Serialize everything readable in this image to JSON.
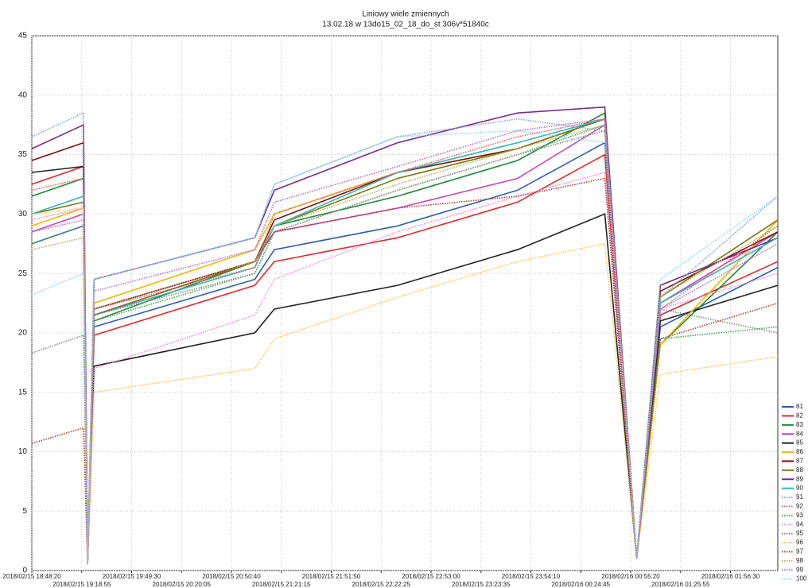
{
  "chart_data": {
    "type": "line",
    "title": "Liniowy   wiele zmiennych",
    "subtitle": "13.02.18 w 13do15_02_18_do_st 306v*51840c",
    "x": [
      "2018/02/15 18:48:20",
      "2018/02/15 19:20:00",
      "2018/02/15 19:22:30",
      "2018/02/15 19:26:30",
      "2018/02/15 21:05:00",
      "2018/02/15 21:17:00",
      "2018/02/15 22:32:30",
      "2018/02/15 23:46:00",
      "2018/02/16 00:39:30",
      "2018/02/16 00:59:00",
      "2018/02/16 01:13:30",
      "2018/02/16 02:25:30"
    ],
    "xlim": [
      "2018/02/15 18:48:20",
      "2018/02/16 02:25:30"
    ],
    "xticks": [
      "2018/02/15 18:48:20",
      "2018/02/15 19:18:55",
      "2018/02/15 19:49:30",
      "2018/02/15 20:20:05",
      "2018/02/15 20:50:40",
      "2018/02/15 21:21:15",
      "2018/02/15 21:51:50",
      "2018/02/15 22:22:25",
      "2018/02/15 22:53:00",
      "2018/02/15 23:23:35",
      "2018/02/15 23:54:10",
      "2018/02/16 00:24:45",
      "2018/02/16 00:55:20",
      "2018/02/16 01:25:55",
      "2018/02/16 01:56:30"
    ],
    "ylim": [
      0,
      45
    ],
    "yticks": [
      0,
      5,
      10,
      15,
      20,
      25,
      30,
      35,
      40,
      45
    ],
    "grid": true,
    "legend": "right",
    "series": [
      {
        "name": "81",
        "color": "#2c5fb0",
        "style": "solid",
        "values": [
          27.5,
          29,
          0.5,
          20.5,
          24.5,
          27,
          29,
          32,
          36,
          1,
          20.5,
          25.5
        ]
      },
      {
        "name": "82",
        "color": "#e8262a",
        "style": "solid",
        "values": [
          32.5,
          34,
          0.5,
          19.8,
          24,
          26,
          28,
          31,
          35,
          1,
          21.5,
          26
        ]
      },
      {
        "name": "83",
        "color": "#1f8a3a",
        "style": "solid",
        "values": [
          31.5,
          33,
          0.5,
          21,
          26,
          29,
          31.5,
          34.5,
          38.5,
          1,
          19,
          28.5
        ]
      },
      {
        "name": "84",
        "color": "#c946b8",
        "style": "solid",
        "values": [
          28.5,
          30,
          0.5,
          22,
          26,
          28.5,
          30.5,
          33,
          37.5,
          1,
          22.5,
          28.5
        ]
      },
      {
        "name": "85",
        "color": "#222222",
        "style": "solid",
        "values": [
          33.5,
          34,
          0.5,
          17.2,
          20,
          22,
          24,
          27,
          30,
          1,
          21,
          24
        ]
      },
      {
        "name": "86",
        "color": "#f5b800",
        "style": "solid",
        "values": [
          29,
          30.5,
          0.5,
          22.5,
          27,
          30,
          33.5,
          35.5,
          38,
          1,
          19,
          29.5
        ]
      },
      {
        "name": "87",
        "color": "#7a1410",
        "style": "solid",
        "values": [
          34.5,
          36,
          0.5,
          22,
          26,
          29.5,
          33.5,
          35.5,
          38,
          1,
          23.5,
          28.5
        ]
      },
      {
        "name": "88",
        "color": "#7b7a12",
        "style": "solid",
        "values": [
          30,
          31,
          0.5,
          21.5,
          26,
          29,
          33,
          35.5,
          38,
          1,
          23,
          29.5
        ]
      },
      {
        "name": "89",
        "color": "#7a2a8a",
        "style": "solid",
        "values": [
          35.5,
          37.5,
          0.5,
          24.5,
          28,
          32,
          36,
          38.5,
          39,
          1,
          24,
          28
        ]
      },
      {
        "name": "90",
        "color": "#2fb7c0",
        "style": "solid",
        "values": [
          30,
          31.5,
          0.5,
          21.5,
          25.5,
          29,
          33.5,
          36,
          38,
          1,
          22.5,
          28
        ]
      },
      {
        "name": "91",
        "color": "#8aa0e0",
        "style": "dotted",
        "values": [
          36.5,
          38.5,
          0.5,
          24.5,
          28,
          32.5,
          36.5,
          38,
          37,
          1,
          23,
          31.5
        ]
      },
      {
        "name": "92",
        "color": "#f06060",
        "style": "dotted",
        "values": [
          32,
          33,
          0.5,
          22,
          25.5,
          30,
          33.5,
          36.5,
          38,
          1,
          22,
          29
        ]
      },
      {
        "name": "93",
        "color": "#45a845",
        "style": "dotted",
        "values": [
          27.5,
          29,
          0.5,
          21,
          25,
          28.5,
          32,
          35,
          37.5,
          1,
          19.5,
          20.5
        ]
      },
      {
        "name": "94",
        "color": "#e890e0",
        "style": "dotted",
        "values": [
          29.5,
          30.5,
          0.5,
          17,
          21.5,
          24.5,
          28.5,
          31.5,
          33.5,
          1,
          22,
          25
        ]
      },
      {
        "name": "95",
        "color": "#888888",
        "style": "dotted",
        "values": [
          18.3,
          19.8,
          0.5,
          21.5,
          25,
          28.5,
          32,
          35,
          37,
          1,
          22,
          20
        ]
      },
      {
        "name": "96",
        "color": "#ffc850",
        "style": "dotted",
        "values": [
          30,
          30.5,
          0.5,
          15,
          17,
          19.5,
          23,
          26,
          27.5,
          1,
          16.5,
          18
        ]
      },
      {
        "name": "97",
        "color": "#b04030",
        "style": "dotted",
        "values": [
          10.7,
          12,
          0.5,
          21.5,
          26,
          28.5,
          30.5,
          31.5,
          33,
          1,
          19.5,
          22.5
        ]
      },
      {
        "name": "98",
        "color": "#b8b060",
        "style": "dotted",
        "values": [
          27,
          28,
          0.5,
          22,
          26,
          29,
          32.5,
          35.5,
          37.5,
          1,
          23,
          29
        ]
      },
      {
        "name": "99",
        "color": "#b070d0",
        "style": "dotted",
        "values": [
          28.5,
          29.5,
          0.5,
          23.5,
          27,
          31,
          34,
          37,
          38,
          1,
          22,
          27.5
        ]
      },
      {
        "name": "100",
        "color": "#90d8f0",
        "style": "dotted",
        "values": [
          23.2,
          25,
          0.5,
          24.5,
          28,
          32.5,
          36.5,
          37,
          36,
          1,
          24.5,
          31.5
        ]
      }
    ]
  }
}
